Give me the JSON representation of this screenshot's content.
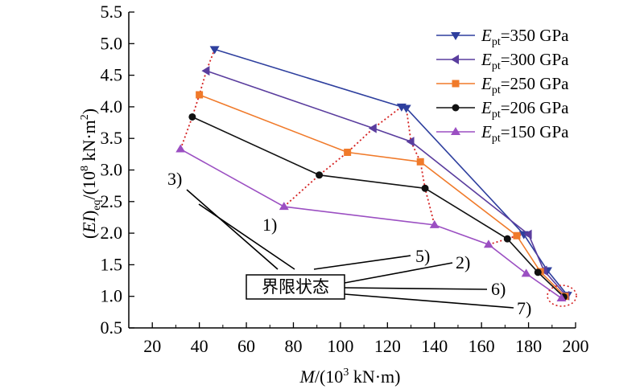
{
  "chart_data": {
    "type": "line",
    "xlabel_parts": {
      "M": "M",
      "prefix": "/(10",
      "exp": "3",
      "suffix": " kN·m)"
    },
    "ylabel_parts": {
      "open": "(",
      "EI": "EI",
      "close": ")",
      "sub": "eq",
      "mid": "/(10",
      "exp": "8",
      "suffix": " kN·m",
      "exp2": "2",
      "end": ")"
    },
    "xlim": [
      10,
      200
    ],
    "ylim": [
      0.5,
      5.5
    ],
    "xticks": [
      20,
      40,
      60,
      80,
      100,
      120,
      140,
      160,
      180,
      200
    ],
    "yticks": [
      0.5,
      1.0,
      1.5,
      2.0,
      2.5,
      3.0,
      3.5,
      4.0,
      4.5,
      5.0,
      5.5
    ],
    "series": [
      {
        "name_E": "E",
        "name_sub": "pt",
        "name_val": "=350 GPa",
        "color": "#2E3F9E",
        "marker": "triangle-down",
        "points": [
          [
            46.5,
            4.91
          ],
          [
            126,
            4.0
          ],
          [
            128,
            3.98
          ],
          [
            178,
            1.98
          ],
          [
            188,
            1.41
          ],
          [
            196.5,
            1.02
          ]
        ]
      },
      {
        "name_E": "E",
        "name_sub": "pt",
        "name_val": "=300 GPa",
        "color": "#5A3D9E",
        "marker": "triangle-left",
        "points": [
          [
            43,
            4.57
          ],
          [
            114,
            3.66
          ],
          [
            130,
            3.45
          ],
          [
            180,
            1.98
          ],
          [
            186.5,
            1.41
          ],
          [
            196,
            1.01
          ]
        ]
      },
      {
        "name_E": "E",
        "name_sub": "pt",
        "name_val": "=250 GPa",
        "color": "#F07A2A",
        "marker": "square",
        "points": [
          [
            40,
            4.19
          ],
          [
            103,
            3.28
          ],
          [
            134,
            3.13
          ],
          [
            175,
            1.96
          ],
          [
            185,
            1.39
          ],
          [
            195.5,
            1.0
          ]
        ]
      },
      {
        "name_E": "E",
        "name_sub": "pt",
        "name_val": "=206 GPa",
        "color": "#111111",
        "marker": "circle",
        "points": [
          [
            37,
            3.84
          ],
          [
            91,
            2.92
          ],
          [
            136,
            2.71
          ],
          [
            171,
            1.91
          ],
          [
            184,
            1.38
          ],
          [
            195,
            0.99
          ]
        ]
      },
      {
        "name_E": "E",
        "name_sub": "pt",
        "name_val": "=150 GPa",
        "color": "#9B4FC2",
        "marker": "triangle-up",
        "points": [
          [
            32,
            3.33
          ],
          [
            76,
            2.42
          ],
          [
            140,
            2.13
          ],
          [
            163,
            1.82
          ],
          [
            179,
            1.36
          ],
          [
            194,
            0.97
          ]
        ]
      }
    ],
    "limit_state_curves": [
      {
        "color": "#D42020",
        "points": [
          [
            32,
            3.33
          ],
          [
            37,
            3.84
          ],
          [
            40,
            4.19
          ],
          [
            43,
            4.57
          ],
          [
            46.5,
            4.91
          ]
        ]
      },
      {
        "color": "#D42020",
        "points": [
          [
            76,
            2.42
          ],
          [
            91,
            2.92
          ],
          [
            103,
            3.28
          ],
          [
            114,
            3.66
          ],
          [
            126,
            4.0
          ],
          [
            128,
            3.98
          ],
          [
            130,
            3.45
          ],
          [
            134,
            3.13
          ],
          [
            136,
            2.71
          ],
          [
            140,
            2.13
          ]
        ]
      },
      {
        "color": "#D42020",
        "points": [
          [
            163,
            1.82
          ],
          [
            171,
            1.91
          ],
          [
            175,
            1.96
          ],
          [
            178,
            1.98
          ]
        ]
      }
    ],
    "annotation_box": "界限状态",
    "callouts": [
      "1)",
      "2)",
      "3)",
      "5)",
      "6)",
      "7)"
    ]
  }
}
